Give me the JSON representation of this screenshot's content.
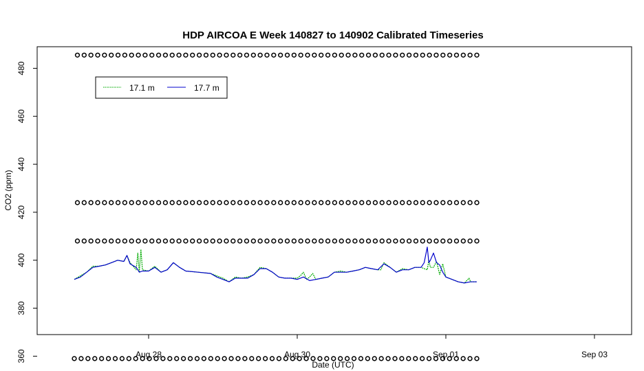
{
  "chart_data": {
    "type": "line",
    "title": "HDP AIRCOA E  Week 140827 to 140902  Calibrated Timeseries",
    "xlabel": "Date (UTC)",
    "ylabel": "CO2 (ppm)",
    "x_start": "Aug 26 12:00",
    "xlim_hours": [
      -12.0,
      180.0
    ],
    "x_ticks": [
      {
        "hours": 24,
        "label": "Aug 28"
      },
      {
        "hours": 72,
        "label": "Aug 30"
      },
      {
        "hours": 120,
        "label": "Sep 01"
      },
      {
        "hours": 168,
        "label": "Sep 03"
      }
    ],
    "ylim": [
      369,
      489
    ],
    "y_ticks": [
      360,
      380,
      400,
      420,
      440,
      460,
      480
    ],
    "legend": {
      "position": "top-left",
      "entries": [
        {
          "name": "17.1 m",
          "color": "#00aa00"
        },
        {
          "name": "17.7 m",
          "color": "#0000cc"
        }
      ]
    },
    "series": [
      {
        "name": "17.1 m",
        "color": "#00aa00",
        "points": [
          [
            0,
            392
          ],
          [
            2,
            393.5
          ],
          [
            4,
            395
          ],
          [
            6,
            397.5
          ],
          [
            8,
            397.5
          ],
          [
            10,
            398
          ],
          [
            12,
            399
          ],
          [
            14,
            400
          ],
          [
            16,
            399.5
          ],
          [
            17,
            402
          ],
          [
            18,
            399
          ],
          [
            20,
            396
          ],
          [
            20.5,
            403
          ],
          [
            21,
            395
          ],
          [
            21.5,
            404.5
          ],
          [
            22,
            396
          ],
          [
            24,
            395.5
          ],
          [
            26,
            397.5
          ],
          [
            28,
            395
          ],
          [
            30,
            396
          ],
          [
            32,
            399
          ],
          [
            34,
            397
          ],
          [
            36,
            395.5
          ],
          [
            40,
            395
          ],
          [
            44,
            394.5
          ],
          [
            46,
            393.5
          ],
          [
            48,
            392.5
          ],
          [
            50,
            391
          ],
          [
            52,
            393
          ],
          [
            54,
            392.5
          ],
          [
            56,
            393
          ],
          [
            58,
            394
          ],
          [
            60,
            397
          ],
          [
            62,
            396.5
          ],
          [
            64,
            395
          ],
          [
            66,
            393
          ],
          [
            68,
            392.5
          ],
          [
            70,
            392.5
          ],
          [
            72,
            392.5
          ],
          [
            73,
            393.5
          ],
          [
            74,
            395
          ],
          [
            75,
            392
          ],
          [
            76,
            393
          ],
          [
            77,
            394.5
          ],
          [
            78,
            392
          ],
          [
            80,
            392.5
          ],
          [
            82,
            393
          ],
          [
            84,
            395
          ],
          [
            86,
            395.5
          ],
          [
            88,
            395
          ],
          [
            90,
            395.5
          ],
          [
            92,
            396
          ],
          [
            94,
            397
          ],
          [
            96,
            396.5
          ],
          [
            98,
            396
          ],
          [
            99,
            396
          ],
          [
            100,
            399
          ],
          [
            102,
            397
          ],
          [
            104,
            395
          ],
          [
            106,
            396.5
          ],
          [
            108,
            396
          ],
          [
            110,
            397
          ],
          [
            112,
            397
          ],
          [
            114,
            396
          ],
          [
            114.5,
            400
          ],
          [
            115,
            397
          ],
          [
            116,
            397
          ],
          [
            117,
            399.5
          ],
          [
            118,
            394
          ],
          [
            119,
            398.5
          ],
          [
            120,
            393
          ],
          [
            122,
            392
          ],
          [
            124,
            391
          ],
          [
            126,
            390.5
          ],
          [
            127.5,
            392.5
          ],
          [
            128,
            391
          ],
          [
            130,
            391
          ]
        ]
      },
      {
        "name": "17.7 m",
        "color": "#0000cc",
        "points": [
          [
            0,
            392
          ],
          [
            2,
            393
          ],
          [
            4,
            395
          ],
          [
            6,
            397
          ],
          [
            8,
            397.5
          ],
          [
            10,
            398
          ],
          [
            12,
            399
          ],
          [
            14,
            400
          ],
          [
            16,
            399.5
          ],
          [
            17,
            402
          ],
          [
            18,
            398.5
          ],
          [
            20,
            397
          ],
          [
            21,
            395
          ],
          [
            22,
            395.5
          ],
          [
            24,
            395.5
          ],
          [
            26,
            397
          ],
          [
            28,
            395
          ],
          [
            30,
            396
          ],
          [
            32,
            399
          ],
          [
            34,
            397
          ],
          [
            36,
            395.5
          ],
          [
            40,
            395
          ],
          [
            44,
            394.5
          ],
          [
            46,
            393
          ],
          [
            48,
            392
          ],
          [
            50,
            391
          ],
          [
            52,
            392.5
          ],
          [
            54,
            392.5
          ],
          [
            56,
            392.5
          ],
          [
            58,
            394
          ],
          [
            60,
            396.5
          ],
          [
            62,
            396.5
          ],
          [
            64,
            395
          ],
          [
            66,
            393
          ],
          [
            68,
            392.5
          ],
          [
            70,
            392.5
          ],
          [
            72,
            392
          ],
          [
            74,
            393
          ],
          [
            76,
            391.5
          ],
          [
            78,
            392
          ],
          [
            80,
            392.5
          ],
          [
            82,
            393
          ],
          [
            84,
            395
          ],
          [
            86,
            395
          ],
          [
            88,
            395
          ],
          [
            90,
            395.5
          ],
          [
            92,
            396
          ],
          [
            94,
            397
          ],
          [
            96,
            396.5
          ],
          [
            98,
            396
          ],
          [
            100,
            398.5
          ],
          [
            102,
            397
          ],
          [
            104,
            395
          ],
          [
            106,
            396
          ],
          [
            108,
            396
          ],
          [
            110,
            397
          ],
          [
            112,
            397
          ],
          [
            113,
            399
          ],
          [
            114,
            405.5
          ],
          [
            114.5,
            399
          ],
          [
            115,
            400
          ],
          [
            116,
            403
          ],
          [
            117,
            399
          ],
          [
            118,
            398
          ],
          [
            119,
            395
          ],
          [
            120,
            393
          ],
          [
            122,
            392
          ],
          [
            124,
            391
          ],
          [
            126,
            390.5
          ],
          [
            128,
            391
          ],
          [
            130,
            391
          ]
        ]
      },
      {
        "name": "",
        "color": "#000000",
        "markers": "open-circle",
        "level": 485.5,
        "x_range": [
          1,
          130
        ],
        "count": 60
      },
      {
        "name": "",
        "color": "#000000",
        "markers": "open-circle",
        "level": 424,
        "x_range": [
          1,
          130
        ],
        "count": 60
      },
      {
        "name": "",
        "color": "#000000",
        "markers": "open-circle",
        "level": 408,
        "x_range": [
          1,
          130
        ],
        "count": 60
      },
      {
        "name": "",
        "color": "#000000",
        "markers": "open-circle",
        "level": 359,
        "x_range": [
          0,
          130
        ],
        "count": 60
      }
    ]
  }
}
